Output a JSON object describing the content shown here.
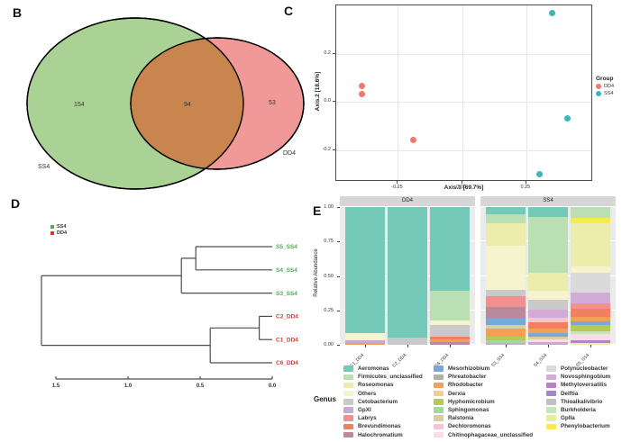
{
  "panel_labels": {
    "b": "B",
    "c": "C",
    "d": "D",
    "e": "E"
  },
  "chart_data": [
    {
      "type": "venn",
      "panel": "B",
      "sets": [
        {
          "name": "SS4",
          "unique": "154",
          "color": "#aad295"
        },
        {
          "name": "DD4",
          "unique": "53",
          "color": "#f19999"
        }
      ],
      "intersection": "94",
      "intersection_color": "#c8854e"
    },
    {
      "type": "scatter",
      "panel": "C",
      "xlabel": "Axis.1  [69.7%]",
      "ylabel": "Axis.2  [18.6%]",
      "xlim": [
        -0.49,
        0.51
      ],
      "ylim": [
        -0.33,
        0.4
      ],
      "xticks": [
        "-0.25",
        "0.00",
        "0.25"
      ],
      "xtick_values": [
        -0.25,
        0,
        0.25
      ],
      "yticks": [
        "0.2",
        "0.0",
        "-0.2"
      ],
      "ytick_values": [
        0.2,
        0,
        -0.2
      ],
      "legend_title": "Group",
      "series": [
        {
          "name": "DD4",
          "color": "#ee7a6e",
          "points": [
            [
              -0.39,
              0.068
            ],
            [
              -0.39,
              0.034
            ],
            [
              -0.19,
              -0.155
            ]
          ]
        },
        {
          "name": "SS4",
          "color": "#3ab6bc",
          "points": [
            [
              0.35,
              0.37
            ],
            [
              0.41,
              -0.068
            ],
            [
              0.3,
              -0.3
            ]
          ]
        }
      ]
    },
    {
      "type": "dendrogram",
      "panel": "D",
      "legend": [
        {
          "name": "SS4",
          "color": "#4caf50"
        },
        {
          "name": "DD4",
          "color": "#e3342e"
        }
      ],
      "axis_ticks": [
        "1.5",
        "1.0",
        "0.5",
        "0.0"
      ],
      "axis_tick_values": [
        1.5,
        1.0,
        0.5,
        0.0
      ],
      "tree": {
        "h": 1.6,
        "children": [
          {
            "h": 0.63,
            "children": [
              {
                "h": 0.53,
                "children": [
                  {
                    "leaf": "S5_SS4"
                  },
                  {
                    "leaf": "S4_SS4"
                  }
                ]
              },
              {
                "leaf": "S3_SS4"
              }
            ]
          },
          {
            "h": 0.43,
            "children": [
              {
                "h": 0.09,
                "children": [
                  {
                    "leaf": "C2_DD4"
                  },
                  {
                    "leaf": "C1_DD4"
                  }
                ]
              },
              {
                "leaf": "C6_DD4"
              }
            ]
          }
        ]
      }
    },
    {
      "type": "bar",
      "stacked": true,
      "panel": "E",
      "ylabel": "Relative Abundance",
      "yticks": [
        "1.00",
        "0.75",
        "0.50",
        "0.25",
        "0.00"
      ],
      "ytick_values": [
        1.0,
        0.75,
        0.5,
        0.25,
        0.0
      ],
      "legend_title": "Genus",
      "facets": [
        {
          "title": "DD4",
          "bars": [
            {
              "label": "C1_DD4",
              "segments": [
                [
                  "Aeromonas",
                  0.915
                ],
                [
                  "Others",
                  0.055
                ],
                [
                  "GpXI",
                  0.015
                ],
                [
                  "Rhodobacter",
                  0.015
                ]
              ]
            },
            {
              "label": "C2_DD4",
              "segments": [
                [
                  "Aeromonas",
                  0.945
                ],
                [
                  "Cetobacterium",
                  0.055
                ]
              ]
            },
            {
              "label": "C6_DD4",
              "segments": [
                [
                  "Aeromonas",
                  0.61
                ],
                [
                  "Firmicutes_unclassified",
                  0.215
                ],
                [
                  "Others",
                  0.03
                ],
                [
                  "Cetobacterium",
                  0.085
                ],
                [
                  "Brevundimonas",
                  0.02
                ],
                [
                  "Rhodobacter",
                  0.02
                ],
                [
                  "Halochromatium",
                  0.02
                ]
              ]
            }
          ]
        },
        {
          "title": "SS4",
          "bars": [
            {
              "label": "S3_SS4",
              "segments": [
                [
                  "Aeromonas",
                  0.055
                ],
                [
                  "Firmicutes_unclassified",
                  0.065
                ],
                [
                  "Roseomonas",
                  0.16
                ],
                [
                  "Others",
                  0.32
                ],
                [
                  "Cetobacterium",
                  0.045
                ],
                [
                  "Labrys",
                  0.08
                ],
                [
                  "Halochromatium",
                  0.08
                ],
                [
                  "Mesorhizobium",
                  0.05
                ],
                [
                  "Ralstonia",
                  0.03
                ],
                [
                  "Rhodobacter",
                  0.055
                ],
                [
                  "Hyphomicrobium",
                  0.03
                ],
                [
                  "Sphingomonas",
                  0.02
                ],
                [
                  "GpXI",
                  0.01
                ]
              ]
            },
            {
              "label": "S4_SS4",
              "segments": [
                [
                  "Aeromonas",
                  0.075
                ],
                [
                  "Firmicutes_unclassified",
                  0.4
                ],
                [
                  "Roseomonas",
                  0.13
                ],
                [
                  "Others",
                  0.07
                ],
                [
                  "Cetobacterium",
                  0.07
                ],
                [
                  "Novosphingobium",
                  0.06
                ],
                [
                  "Dechloromonas",
                  0.03
                ],
                [
                  "Brevundimonas",
                  0.05
                ],
                [
                  "Rhodobacter",
                  0.03
                ],
                [
                  "Mesorhizobium",
                  0.025
                ],
                [
                  "Ralstonia",
                  0.02
                ],
                [
                  "Chitinophagaceae_unclassified",
                  0.02
                ],
                [
                  "GpXI",
                  0.02
                ]
              ]
            },
            {
              "label": "S5_SS4",
              "segments": [
                [
                  "Firmicutes_unclassified",
                  0.08
                ],
                [
                  "Phenylobacterium",
                  0.04
                ],
                [
                  "Roseomonas",
                  0.31
                ],
                [
                  "Others",
                  0.05
                ],
                [
                  "Polynucleobacter",
                  0.14
                ],
                [
                  "Novosphingobium",
                  0.08
                ],
                [
                  "Labrys",
                  0.04
                ],
                [
                  "Brevundimonas",
                  0.06
                ],
                [
                  "Rhodobacter",
                  0.03
                ],
                [
                  "Mesorhizobium",
                  0.03
                ],
                [
                  "Hyphomicrobium",
                  0.04
                ],
                [
                  "Burkholderia",
                  0.025
                ],
                [
                  "Chitinophagaceae_unclassified",
                  0.04
                ],
                [
                  "Methyloversatilis",
                  0.02
                ],
                [
                  "GpIIa",
                  0.015
                ]
              ]
            }
          ]
        }
      ],
      "legend_columns": [
        [
          [
            "Aeromonas",
            "#74c9b9"
          ],
          [
            "Firmicutes_unclassified",
            "#b9dfb3"
          ],
          [
            "Roseomonas",
            "#ecedaa"
          ],
          [
            "Others",
            "#f6f3cf"
          ],
          [
            "Cetobacterium",
            "#c9c9c9"
          ],
          [
            "GpXI",
            "#c9a9cd"
          ],
          [
            "Labrys",
            "#f0918f"
          ],
          [
            "Brevundimonas",
            "#f47e60"
          ],
          [
            "Halochromatium",
            "#ba8a9b"
          ]
        ],
        [
          [
            "Mesorhizobium",
            "#76a9d8"
          ],
          [
            "Phreatobacter",
            "#b2b2a0"
          ],
          [
            "Rhodobacter",
            "#f0a155"
          ],
          [
            "Derxia",
            "#f6ca90"
          ],
          [
            "Hyphomicrobium",
            "#b7c950"
          ],
          [
            "Sphingomonas",
            "#a6d7a1"
          ],
          [
            "Ralstonia",
            "#d9cea1"
          ],
          [
            "Dechloromonas",
            "#f8c4d4"
          ],
          [
            "Chitinophagaceae_unclassified",
            "#f7dee5"
          ]
        ],
        [
          [
            "Polynucleobacter",
            "#dadada"
          ],
          [
            "Novosphingobium",
            "#d3abd7"
          ],
          [
            "Methyloversatilis",
            "#b780c7"
          ],
          [
            "Delftia",
            "#a584c9"
          ],
          [
            "Thioalkalivibrio",
            "#c0c0c0"
          ],
          [
            "Burkholderia",
            "#c7e5ba"
          ],
          [
            "GpIIa",
            "#e4eea4"
          ],
          [
            "Phenylobacterium",
            "#f8e94e"
          ]
        ]
      ]
    }
  ]
}
